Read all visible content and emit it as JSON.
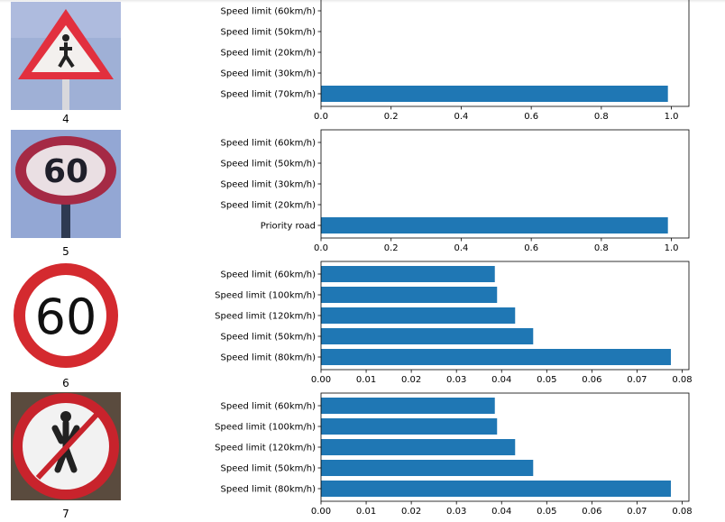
{
  "bar_color": "#1f77b4",
  "panels": [
    {
      "index_label": "4",
      "icon": "pedestrians-warning-sign-icon",
      "chart_data": {
        "type": "bar",
        "orientation": "horizontal",
        "categories": [
          "Speed limit (70km/h)",
          "Speed limit (30km/h)",
          "Speed limit (20km/h)",
          "Speed limit (50km/h)",
          "Speed limit (60km/h)"
        ],
        "values": [
          0.99,
          0.0,
          0.0,
          0.0,
          0.0
        ],
        "xlim": [
          0,
          1.05
        ],
        "xticks": [
          "0.0",
          "0.2",
          "0.4",
          "0.6",
          "0.8",
          "1.0"
        ],
        "xtick_values": [
          0,
          0.2,
          0.4,
          0.6,
          0.8,
          1.0
        ],
        "grid": false
      }
    },
    {
      "index_label": "5",
      "icon": "speed-limit-60-sign-icon",
      "chart_data": {
        "type": "bar",
        "orientation": "horizontal",
        "categories": [
          "Priority road",
          "Speed limit (20km/h)",
          "Speed limit (30km/h)",
          "Speed limit (50km/h)",
          "Speed limit (60km/h)"
        ],
        "values": [
          0.99,
          0.0,
          0.0,
          0.0,
          0.0
        ],
        "xlim": [
          0,
          1.05
        ],
        "xticks": [
          "0.0",
          "0.2",
          "0.4",
          "0.6",
          "0.8",
          "1.0"
        ],
        "xtick_values": [
          0,
          0.2,
          0.4,
          0.6,
          0.8,
          1.0
        ],
        "grid": false
      }
    },
    {
      "index_label": "6",
      "icon": "speed-limit-60-sign-icon",
      "chart_data": {
        "type": "bar",
        "orientation": "horizontal",
        "categories": [
          "Speed limit (80km/h)",
          "Speed limit (50km/h)",
          "Speed limit (120km/h)",
          "Speed limit (100km/h)",
          "Speed limit (60km/h)"
        ],
        "values": [
          0.0775,
          0.047,
          0.043,
          0.039,
          0.0385
        ],
        "xlim": [
          0,
          0.0815
        ],
        "xticks": [
          "0.00",
          "0.01",
          "0.02",
          "0.03",
          "0.04",
          "0.05",
          "0.06",
          "0.07",
          "0.08"
        ],
        "xtick_values": [
          0,
          0.01,
          0.02,
          0.03,
          0.04,
          0.05,
          0.06,
          0.07,
          0.08
        ],
        "grid": false
      }
    },
    {
      "index_label": "7",
      "icon": "no-pedestrians-sign-icon",
      "chart_data": {
        "type": "bar",
        "orientation": "horizontal",
        "categories": [
          "Speed limit (80km/h)",
          "Speed limit (50km/h)",
          "Speed limit (120km/h)",
          "Speed limit (100km/h)",
          "Speed limit (60km/h)"
        ],
        "values": [
          0.0775,
          0.047,
          0.043,
          0.039,
          0.0385
        ],
        "xlim": [
          0,
          0.0815
        ],
        "xticks": [
          "0.00",
          "0.01",
          "0.02",
          "0.03",
          "0.04",
          "0.05",
          "0.06",
          "0.07",
          "0.08"
        ],
        "xtick_values": [
          0,
          0.01,
          0.02,
          0.03,
          0.04,
          0.05,
          0.06,
          0.07,
          0.08
        ],
        "grid": false
      }
    }
  ]
}
